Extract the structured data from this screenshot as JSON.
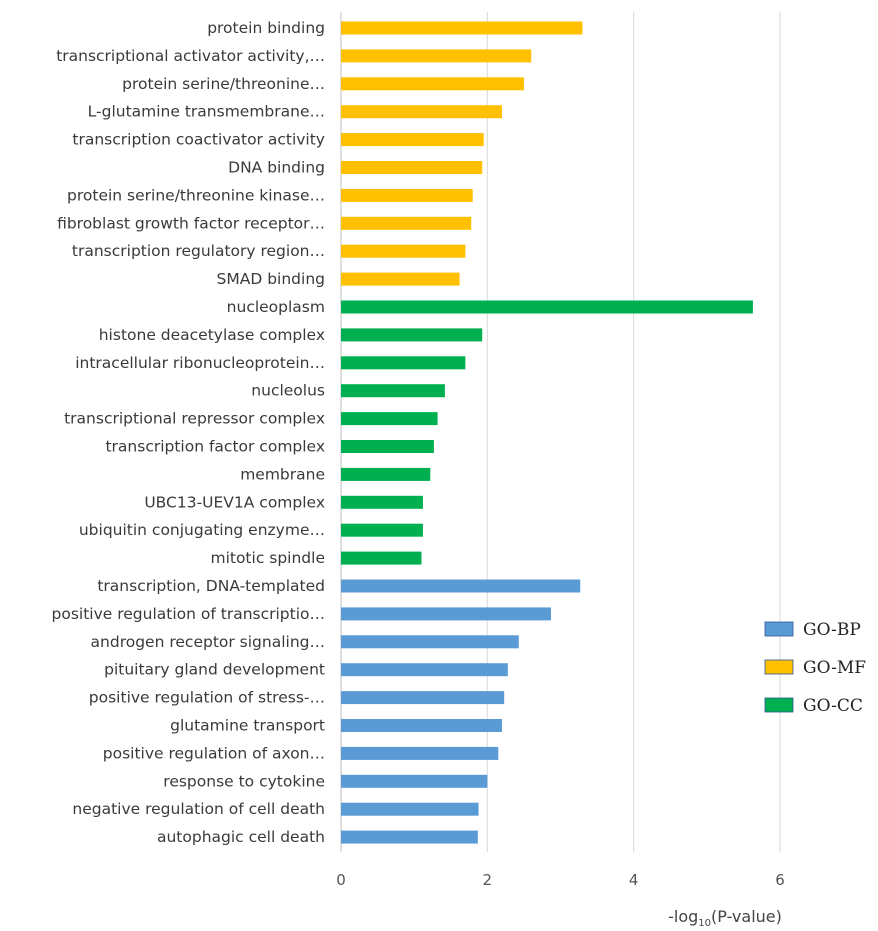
{
  "chart_data": {
    "type": "bar",
    "orientation": "horizontal",
    "xlabel_prefix": "-log",
    "xlabel_sub": "10",
    "xlabel_suffix": "(P-value)",
    "xlim": [
      0,
      6
    ],
    "xticks": [
      "0",
      "2",
      "4",
      "6"
    ],
    "grid": true,
    "legend_position": "right",
    "groups": [
      {
        "name": "GO-BP",
        "color": "#5b9bd5"
      },
      {
        "name": "GO-MF",
        "color": "#ffc000"
      },
      {
        "name": "GO-CC",
        "color": "#00b050"
      }
    ],
    "bars": [
      {
        "label": "protein binding",
        "value": 3.3,
        "group": "GO-MF"
      },
      {
        "label": "transcriptional activator activity,…",
        "value": 2.6,
        "group": "GO-MF"
      },
      {
        "label": "protein serine/threonine…",
        "value": 2.5,
        "group": "GO-MF"
      },
      {
        "label": "L-glutamine transmembrane…",
        "value": 2.2,
        "group": "GO-MF"
      },
      {
        "label": "transcription coactivator activity",
        "value": 1.95,
        "group": "GO-MF"
      },
      {
        "label": "DNA binding",
        "value": 1.93,
        "group": "GO-MF"
      },
      {
        "label": "protein serine/threonine kinase…",
        "value": 1.8,
        "group": "GO-MF"
      },
      {
        "label": "fibroblast growth factor receptor…",
        "value": 1.78,
        "group": "GO-MF"
      },
      {
        "label": "transcription regulatory region…",
        "value": 1.7,
        "group": "GO-MF"
      },
      {
        "label": "SMAD binding",
        "value": 1.62,
        "group": "GO-MF"
      },
      {
        "label": "nucleoplasm",
        "value": 5.63,
        "group": "GO-CC"
      },
      {
        "label": "histone deacetylase complex",
        "value": 1.93,
        "group": "GO-CC"
      },
      {
        "label": "intracellular ribonucleoprotein…",
        "value": 1.7,
        "group": "GO-CC"
      },
      {
        "label": "nucleolus",
        "value": 1.42,
        "group": "GO-CC"
      },
      {
        "label": "transcriptional repressor complex",
        "value": 1.32,
        "group": "GO-CC"
      },
      {
        "label": "transcription factor complex",
        "value": 1.27,
        "group": "GO-CC"
      },
      {
        "label": "membrane",
        "value": 1.22,
        "group": "GO-CC"
      },
      {
        "label": "UBC13-UEV1A complex",
        "value": 1.12,
        "group": "GO-CC"
      },
      {
        "label": "ubiquitin conjugating enzyme…",
        "value": 1.12,
        "group": "GO-CC"
      },
      {
        "label": "mitotic spindle",
        "value": 1.1,
        "group": "GO-CC"
      },
      {
        "label": "transcription, DNA-templated",
        "value": 3.27,
        "group": "GO-BP"
      },
      {
        "label": "positive regulation of transcriptio…",
        "value": 2.87,
        "group": "GO-BP"
      },
      {
        "label": "androgen receptor signaling…",
        "value": 2.43,
        "group": "GO-BP"
      },
      {
        "label": "pituitary gland development",
        "value": 2.28,
        "group": "GO-BP"
      },
      {
        "label": "positive regulation of stress-…",
        "value": 2.23,
        "group": "GO-BP"
      },
      {
        "label": "glutamine transport",
        "value": 2.2,
        "group": "GO-BP"
      },
      {
        "label": "positive regulation of axon…",
        "value": 2.15,
        "group": "GO-BP"
      },
      {
        "label": "response to cytokine",
        "value": 2.0,
        "group": "GO-BP"
      },
      {
        "label": "negative regulation of cell death",
        "value": 1.88,
        "group": "GO-BP"
      },
      {
        "label": "autophagic cell death",
        "value": 1.87,
        "group": "GO-BP"
      }
    ]
  }
}
